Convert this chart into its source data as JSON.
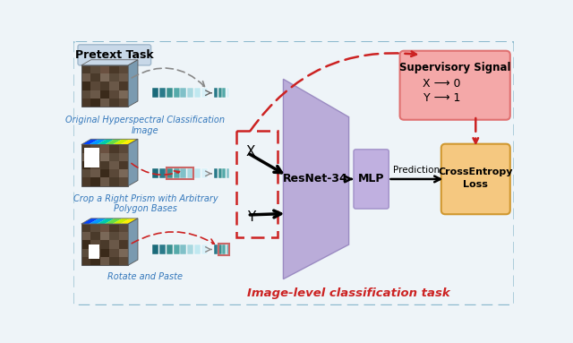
{
  "bg_color": "#eef4f8",
  "pretext_label": "Pretext Task",
  "supervisory_label": "Supervisory Signal",
  "supervisory_text_x": "X ⟶ 0",
  "supervisory_text_y": "Y ⟶ 1",
  "crossentropy_label_1": "CrossEntropy",
  "crossentropy_label_2": "Loss",
  "label_top": "Original Hyperspectral Classification\nImage",
  "label_mid": "Crop a Right Prism with Arbitrary\nPolygon Bases",
  "label_bot": "Rotate and Paste",
  "bottom_label": "Image-level classification task",
  "X_label": "X",
  "Y_label": "Y",
  "prediction_label": "Prediction",
  "resnet_label": "ResNet-34",
  "mlp_label": "MLP",
  "bar_colors": [
    "#1a6a7a",
    "#2a7a8a",
    "#3a9090",
    "#55aaaa",
    "#80c0c8",
    "#a8d8e0",
    "#c0e8f0",
    "#d8f0f8"
  ],
  "bar_colors2": [
    "#2a7a8a",
    "#3a9090",
    "#55aaaa",
    "#80c0c8",
    "#a8d8e0",
    "#c0e8f0"
  ],
  "highlight_color": "#cc6666",
  "gray_dashed": "#888888",
  "red_dashed": "#cc2222",
  "border_color": "#8ab8cc"
}
